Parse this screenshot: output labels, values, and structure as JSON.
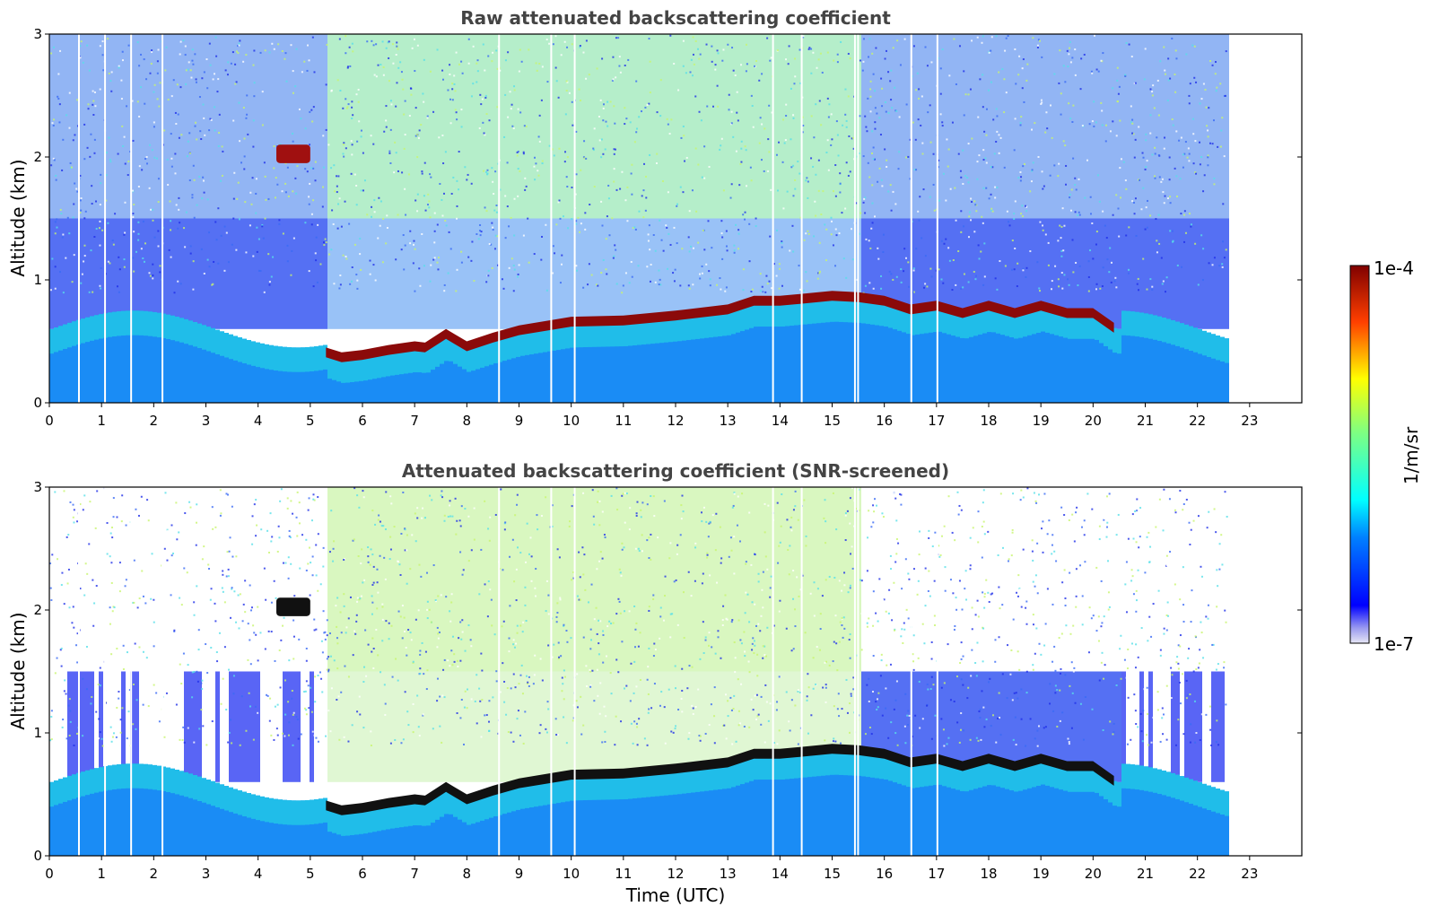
{
  "colors": {
    "axis": "#000000",
    "title_text": "#444444",
    "background": "#ffffff",
    "colormap": "jet"
  },
  "chart_data": [
    {
      "type": "heatmap",
      "title": "Raw attenuated backscattering coefficient",
      "ylabel": "Altitude (km)",
      "xlabel": "",
      "xlim": [
        0,
        24
      ],
      "ylim": [
        0,
        3
      ],
      "xticks": [
        "0",
        "1",
        "2",
        "3",
        "4",
        "5",
        "6",
        "7",
        "8",
        "9",
        "10",
        "11",
        "12",
        "13",
        "14",
        "15",
        "16",
        "17",
        "18",
        "19",
        "20",
        "21",
        "22",
        "23"
      ],
      "yticks": [
        "0",
        "1",
        "2",
        "3"
      ],
      "data_x_extent": [
        0,
        22.55
      ],
      "cloud_base_km": {
        "x": [
          5.3,
          5.6,
          6.0,
          6.5,
          7.0,
          7.2,
          7.6,
          8.0,
          8.5,
          9.0,
          10.0,
          11.0,
          12.0,
          13.0,
          13.5,
          14.0,
          15.0,
          15.5,
          16.0,
          16.5,
          17.0,
          17.5,
          18.0,
          18.5,
          19.0,
          19.5,
          20.0,
          20.4
        ],
        "y": [
          0.4,
          0.36,
          0.38,
          0.42,
          0.45,
          0.44,
          0.55,
          0.45,
          0.52,
          0.58,
          0.65,
          0.66,
          0.7,
          0.75,
          0.82,
          0.82,
          0.86,
          0.85,
          0.82,
          0.75,
          0.78,
          0.72,
          0.78,
          0.72,
          0.78,
          0.72,
          0.72,
          0.6
        ]
      },
      "elevated_layer": {
        "x": [
          4.35,
          5.0
        ],
        "y": [
          1.95,
          2.1
        ]
      },
      "boundary_layer_top_km": 0.6
    },
    {
      "type": "heatmap",
      "title": "Attenuated backscattering coefficient (SNR-screened)",
      "ylabel": "Altitude (km)",
      "xlabel": "Time (UTC)",
      "xlim": [
        0,
        24
      ],
      "ylim": [
        0,
        3
      ],
      "xticks": [
        "0",
        "1",
        "2",
        "3",
        "4",
        "5",
        "6",
        "7",
        "8",
        "9",
        "10",
        "11",
        "12",
        "13",
        "14",
        "15",
        "16",
        "17",
        "18",
        "19",
        "20",
        "21",
        "22",
        "23"
      ],
      "yticks": [
        "0",
        "1",
        "2",
        "3"
      ],
      "data_x_extent": [
        0,
        22.55
      ],
      "cloud_base_km": {
        "x": [
          5.3,
          5.6,
          6.0,
          6.5,
          7.0,
          7.2,
          7.6,
          8.0,
          8.5,
          9.0,
          10.0,
          11.0,
          12.0,
          13.0,
          13.5,
          14.0,
          15.0,
          15.5,
          16.0,
          16.5,
          17.0,
          17.5,
          18.0,
          18.5,
          19.0,
          19.5,
          20.0,
          20.4
        ],
        "y": [
          0.4,
          0.36,
          0.38,
          0.42,
          0.45,
          0.44,
          0.55,
          0.45,
          0.52,
          0.58,
          0.65,
          0.66,
          0.7,
          0.75,
          0.82,
          0.82,
          0.86,
          0.85,
          0.82,
          0.75,
          0.78,
          0.72,
          0.78,
          0.72,
          0.78,
          0.72,
          0.72,
          0.6
        ]
      },
      "elevated_layer": {
        "x": [
          4.35,
          5.0
        ],
        "y": [
          1.95,
          2.1
        ]
      },
      "boundary_layer_top_km": 0.6
    }
  ],
  "colorbar": {
    "max_label": "1e-4",
    "min_label": "1e-7",
    "label": "1/m/sr",
    "scale": "log"
  }
}
